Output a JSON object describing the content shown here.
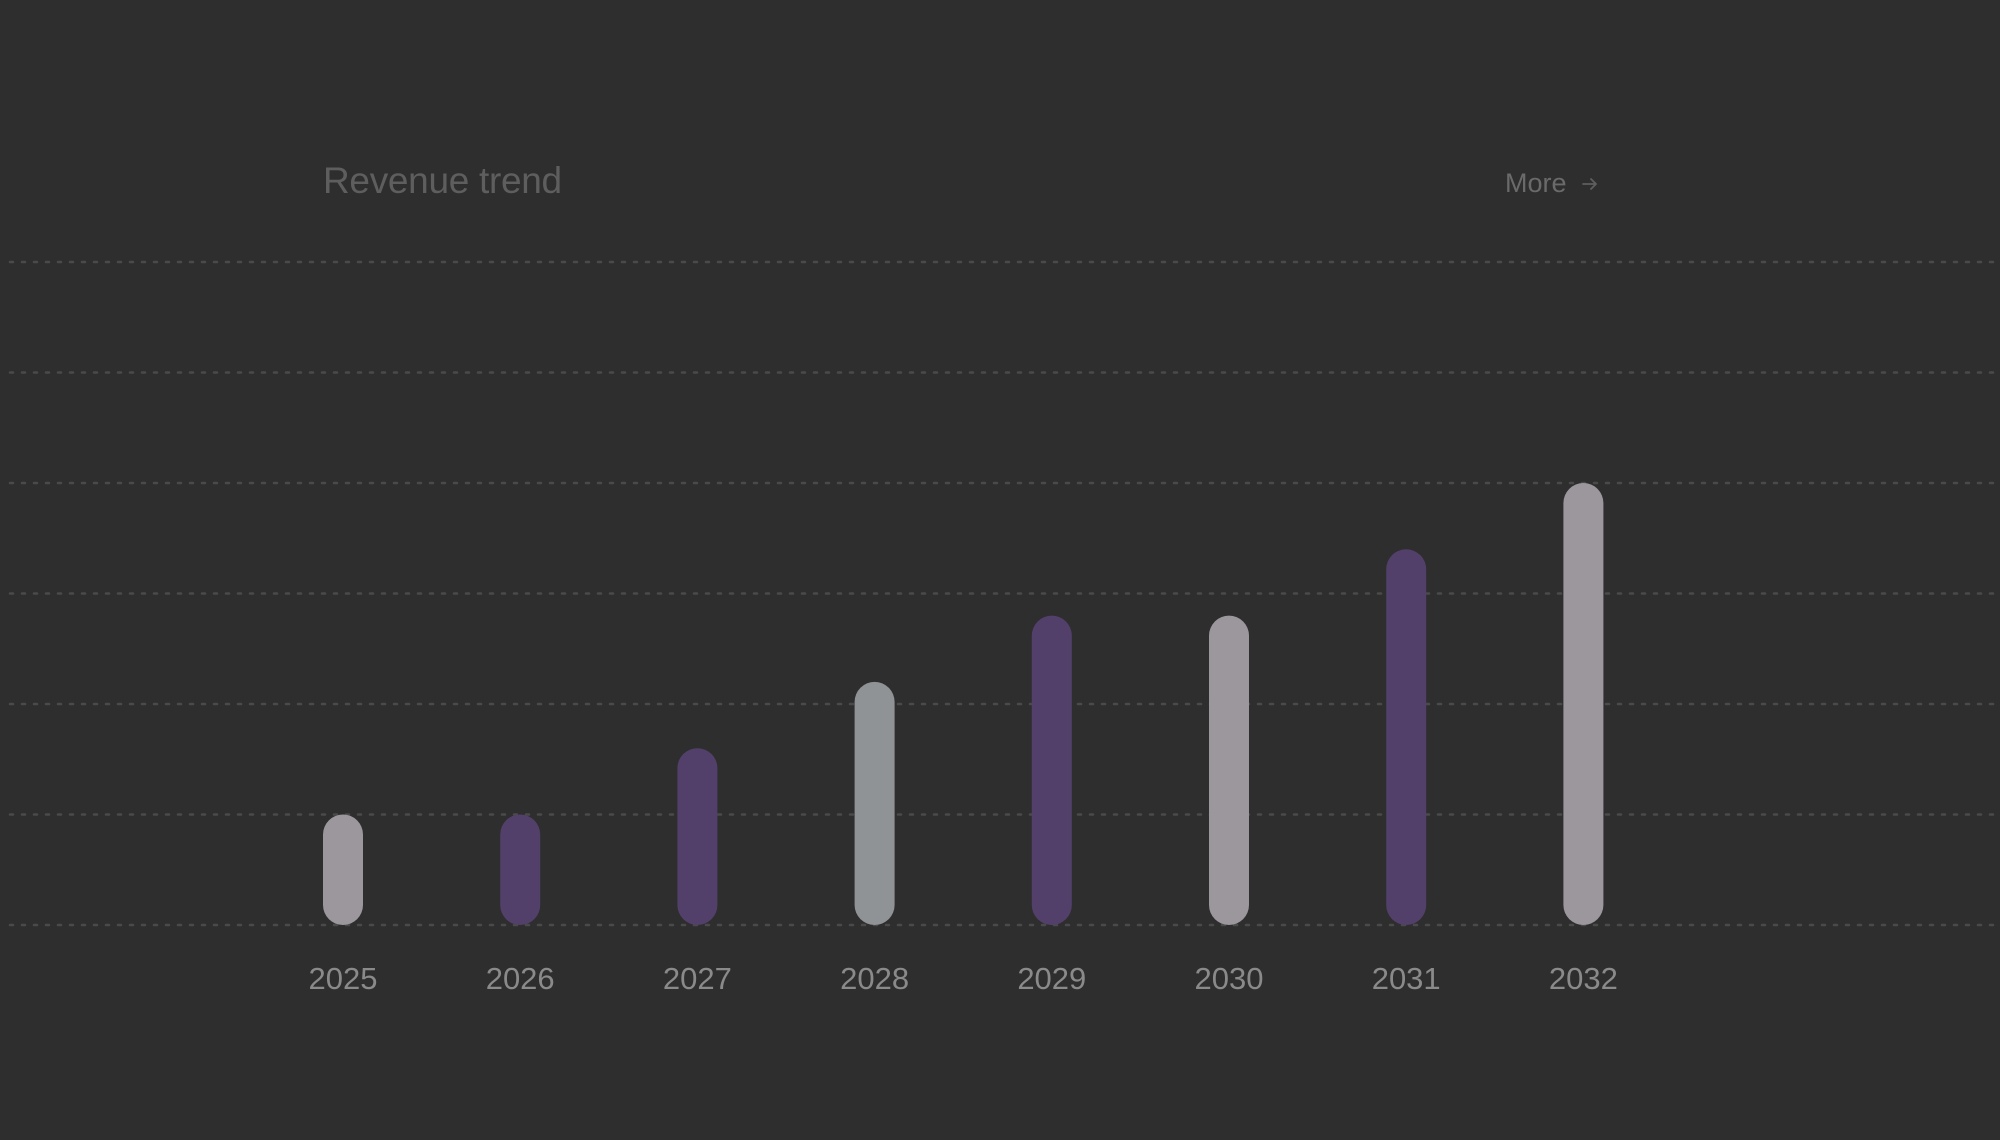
{
  "header": {
    "title": "Revenue trend",
    "more_label": "More"
  },
  "icons": {
    "more_arrow": "arrow-right-icon"
  },
  "colors": {
    "background": "#2e2e2e",
    "grid": "#4a4a4a",
    "purple": "#52406a",
    "gray_light": "#9c979d",
    "gray_cool": "#8f9396",
    "tick_label": "#8a8a8a"
  },
  "chart_data": {
    "type": "bar",
    "title": "Revenue trend",
    "categories": [
      "2025",
      "2026",
      "2027",
      "2028",
      "2029",
      "2030",
      "2031",
      "2032"
    ],
    "values": [
      1,
      1,
      1.6,
      2.2,
      2.8,
      2.8,
      3.4,
      4.0
    ],
    "bar_colors": [
      "#9c979d",
      "#52406a",
      "#52406a",
      "#8f9396",
      "#52406a",
      "#9c979d",
      "#52406a",
      "#9c979d"
    ],
    "ylim": [
      0,
      6
    ],
    "grid": true,
    "xlabel": "",
    "ylabel": ""
  }
}
